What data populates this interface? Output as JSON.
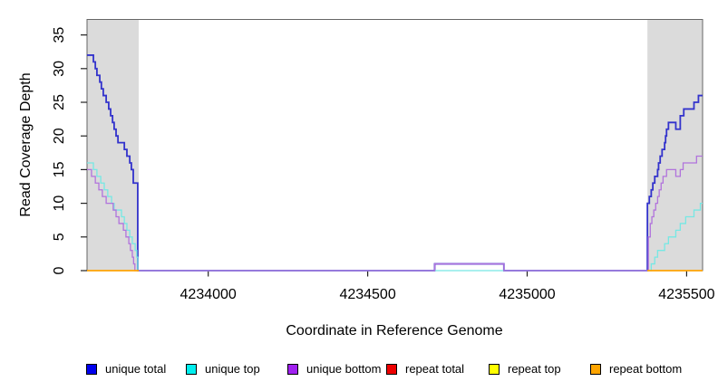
{
  "chart_data": {
    "type": "line",
    "subtype": "step-after",
    "title": "",
    "xlabel": "Coordinate in Reference Genome",
    "ylabel": "Read Coverage Depth",
    "xlim": [
      4233620,
      4235550
    ],
    "ylim": [
      0,
      37.3
    ],
    "xticks": [
      4234000,
      4234500,
      4235000,
      4235500
    ],
    "yticks": [
      0,
      5,
      10,
      15,
      20,
      25,
      30,
      35
    ],
    "grid": false,
    "legend_position": "bottom",
    "box_color": "#666666",
    "tick_color": "#222222",
    "shaded_regions": [
      {
        "name": "left-repeat-region",
        "x0": 4233620,
        "x1": 4233782,
        "color": "#DBDBDB"
      },
      {
        "name": "right-repeat-region",
        "x0": 4235377,
        "x1": 4235550,
        "color": "#DBDBDB"
      }
    ],
    "series": [
      {
        "name": "unique total",
        "legend_color": "#0000EE",
        "line_color": "#3333CC",
        "line_width": 1.8,
        "segments": [
          [
            [
              4233620,
              32
            ],
            [
              4233640,
              31
            ],
            [
              4233646,
              30
            ],
            [
              4233651,
              29
            ],
            [
              4233660,
              28
            ],
            [
              4233665,
              27
            ],
            [
              4233671,
              26
            ],
            [
              4233680,
              25
            ],
            [
              4233688,
              24
            ],
            [
              4233694,
              23
            ],
            [
              4233700,
              22
            ],
            [
              4233705,
              21
            ],
            [
              4233711,
              20
            ],
            [
              4233717,
              19
            ],
            [
              4233737,
              18
            ],
            [
              4233745,
              17
            ],
            [
              4233754,
              16
            ],
            [
              4233759,
              15
            ],
            [
              4233765,
              13
            ],
            [
              4233779,
              0
            ],
            [
              4234710,
              1
            ],
            [
              4234927,
              0
            ],
            [
              4235377,
              10
            ],
            [
              4235383,
              11
            ],
            [
              4235389,
              12
            ],
            [
              4235394,
              13
            ],
            [
              4235400,
              14
            ],
            [
              4235409,
              15
            ],
            [
              4235412,
              16
            ],
            [
              4235417,
              17
            ],
            [
              4235423,
              18
            ],
            [
              4235431,
              19
            ],
            [
              4235434,
              20
            ],
            [
              4235437,
              21
            ],
            [
              4235443,
              22
            ],
            [
              4235466,
              21
            ],
            [
              4235480,
              23
            ],
            [
              4235491,
              24
            ],
            [
              4235523,
              25
            ],
            [
              4235537,
              26
            ],
            [
              4235550,
              26
            ]
          ]
        ]
      },
      {
        "name": "unique top",
        "legend_color": "#00EEEE",
        "line_color": "#76E8E4",
        "line_width": 1.3,
        "segments": [
          [
            [
              4233620,
              16
            ],
            [
              4233640,
              15
            ],
            [
              4233651,
              14
            ],
            [
              4233663,
              13
            ],
            [
              4233674,
              12
            ],
            [
              4233685,
              11
            ],
            [
              4233697,
              10
            ],
            [
              4233705,
              9
            ],
            [
              4233728,
              8
            ],
            [
              4233737,
              7
            ],
            [
              4233745,
              6
            ],
            [
              4233754,
              5
            ],
            [
              4233762,
              4
            ],
            [
              4233771,
              3
            ],
            [
              4233776,
              2
            ],
            [
              4233779,
              0
            ],
            [
              4235389,
              1
            ],
            [
              4235400,
              2
            ],
            [
              4235409,
              3
            ],
            [
              4235431,
              4
            ],
            [
              4235443,
              5
            ],
            [
              4235466,
              6
            ],
            [
              4235480,
              7
            ],
            [
              4235497,
              8
            ],
            [
              4235523,
              9
            ],
            [
              4235543,
              10
            ],
            [
              4235550,
              10
            ]
          ]
        ]
      },
      {
        "name": "unique bottom",
        "legend_color": "#A020F0",
        "line_color": "#B173DC",
        "line_width": 1.3,
        "segments": [
          [
            [
              4233620,
              15
            ],
            [
              4233634,
              14
            ],
            [
              4233646,
              13
            ],
            [
              4233657,
              12
            ],
            [
              4233668,
              11
            ],
            [
              4233680,
              10
            ],
            [
              4233702,
              9
            ],
            [
              4233711,
              8
            ],
            [
              4233720,
              7
            ],
            [
              4233734,
              6
            ],
            [
              4233742,
              5
            ],
            [
              4233751,
              4
            ],
            [
              4233756,
              3
            ],
            [
              4233762,
              2
            ],
            [
              4233766,
              1
            ],
            [
              4233770,
              0
            ],
            [
              4234710,
              1
            ],
            [
              4234927,
              0
            ],
            [
              4235380,
              5
            ],
            [
              4235386,
              7
            ],
            [
              4235391,
              8
            ],
            [
              4235397,
              9
            ],
            [
              4235403,
              10
            ],
            [
              4235409,
              11
            ],
            [
              4235414,
              12
            ],
            [
              4235420,
              13
            ],
            [
              4235426,
              14
            ],
            [
              4235437,
              15
            ],
            [
              4235466,
              14
            ],
            [
              4235480,
              15
            ],
            [
              4235489,
              16
            ],
            [
              4235531,
              17
            ],
            [
              4235550,
              17
            ]
          ]
        ]
      },
      {
        "name": "repeat total",
        "legend_color": "#EE0000",
        "line_color": "#EE0000",
        "line_width": 1.3,
        "segments": [
          [
            [
              4233620,
              0
            ],
            [
              4233782,
              0
            ]
          ],
          [
            [
              4235377,
              0
            ],
            [
              4235550,
              0
            ]
          ]
        ]
      },
      {
        "name": "repeat top",
        "legend_color": "#FFFF00",
        "line_color": "#FFFF00",
        "line_width": 1.3,
        "segments": [
          [
            [
              4233620,
              0
            ],
            [
              4233782,
              0
            ]
          ],
          [
            [
              4235377,
              0
            ],
            [
              4235550,
              0
            ]
          ]
        ]
      },
      {
        "name": "repeat bottom",
        "legend_color": "#FFA500",
        "line_color": "#FFA500",
        "line_width": 1.6,
        "segments": [
          [
            [
              4233620,
              0
            ],
            [
              4233782,
              0
            ]
          ],
          [
            [
              4235377,
              0
            ],
            [
              4235550,
              0
            ]
          ]
        ]
      }
    ]
  }
}
